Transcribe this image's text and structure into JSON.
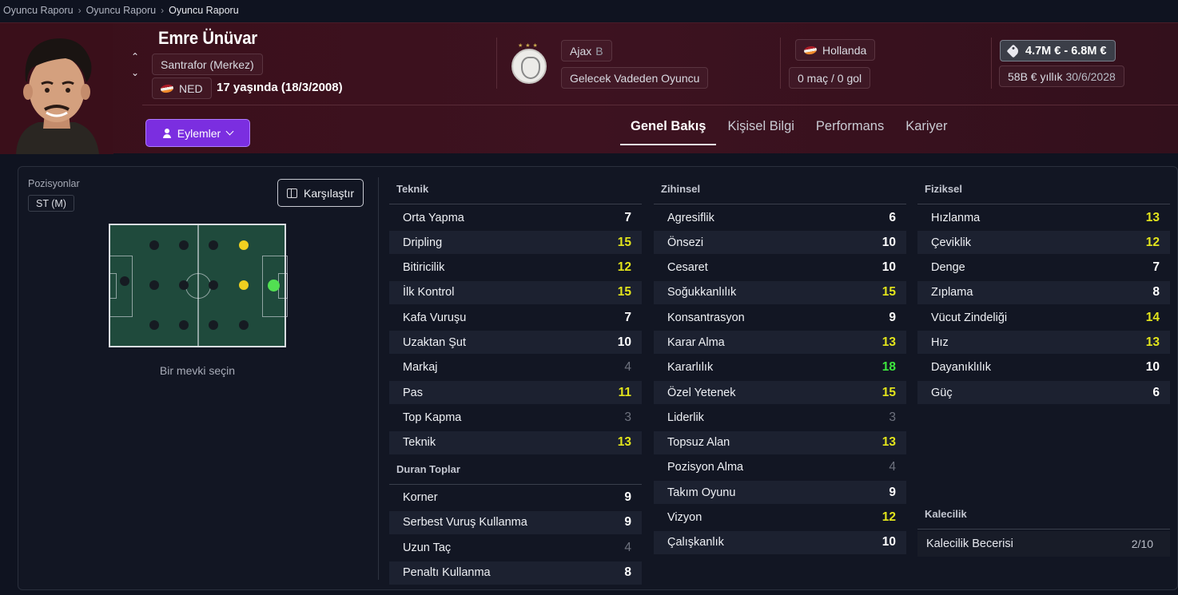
{
  "breadcrumb": [
    "Oyuncu Raporu",
    "Oyuncu Raporu",
    "Oyuncu Raporu"
  ],
  "player": {
    "name": "Emre Ünüvar",
    "position": "Santrafor (Merkez)",
    "nation_code": "NED",
    "age_text": "17 yaşında (18/3/2008)"
  },
  "club": {
    "name": "Ajax",
    "team_suffix": "B",
    "status": "Gelecek Vadeden Oyuncu"
  },
  "nation": {
    "name": "Hollanda",
    "caps": "0 maç / 0 gol"
  },
  "contract": {
    "value": "4.7M € - 6.8M €",
    "wage": "58B € yıllık",
    "expiry": "30/6/2028"
  },
  "actions_label": "Eylemler",
  "tabs": [
    "Genel Bakış",
    "Kişisel Bilgi",
    "Performans",
    "Kariyer"
  ],
  "positions": {
    "label": "Pozisyonlar",
    "current": "ST (M)",
    "compare_label": "Karşılaştır",
    "select_text": "Bir mevki seçin"
  },
  "colors": {
    "header_bg": "#3a0f1a",
    "accent": "#7b2ee0",
    "good": "#e2e41c",
    "great": "#3ee83e",
    "poor": "#6e727e"
  },
  "teknik": {
    "title": "Teknik",
    "items": [
      {
        "name": "Orta Yapma",
        "value": "7",
        "tier": "white"
      },
      {
        "name": "Dripling",
        "value": "15",
        "tier": "yellow"
      },
      {
        "name": "Bitiricilik",
        "value": "12",
        "tier": "yellow"
      },
      {
        "name": "İlk Kontrol",
        "value": "15",
        "tier": "yellow"
      },
      {
        "name": "Kafa Vuruşu",
        "value": "7",
        "tier": "white"
      },
      {
        "name": "Uzaktan Şut",
        "value": "10",
        "tier": "white"
      },
      {
        "name": "Markaj",
        "value": "4",
        "tier": "gray"
      },
      {
        "name": "Pas",
        "value": "11",
        "tier": "yellow"
      },
      {
        "name": "Top Kapma",
        "value": "3",
        "tier": "gray"
      },
      {
        "name": "Teknik",
        "value": "13",
        "tier": "yellow"
      }
    ]
  },
  "duran": {
    "title": "Duran Toplar",
    "items": [
      {
        "name": "Korner",
        "value": "9",
        "tier": "white"
      },
      {
        "name": "Serbest Vuruş Kullanma",
        "value": "9",
        "tier": "white"
      },
      {
        "name": "Uzun Taç",
        "value": "4",
        "tier": "gray"
      },
      {
        "name": "Penaltı Kullanma",
        "value": "8",
        "tier": "white"
      }
    ]
  },
  "zihinsel": {
    "title": "Zihinsel",
    "items": [
      {
        "name": "Agresiflik",
        "value": "6",
        "tier": "white"
      },
      {
        "name": "Önsezi",
        "value": "10",
        "tier": "white"
      },
      {
        "name": "Cesaret",
        "value": "10",
        "tier": "white"
      },
      {
        "name": "Soğukkanlılık",
        "value": "15",
        "tier": "yellow"
      },
      {
        "name": "Konsantrasyon",
        "value": "9",
        "tier": "white"
      },
      {
        "name": "Karar Alma",
        "value": "13",
        "tier": "yellow"
      },
      {
        "name": "Kararlılık",
        "value": "18",
        "tier": "green"
      },
      {
        "name": "Özel Yetenek",
        "value": "15",
        "tier": "yellow"
      },
      {
        "name": "Liderlik",
        "value": "3",
        "tier": "gray"
      },
      {
        "name": "Topsuz Alan",
        "value": "13",
        "tier": "yellow"
      },
      {
        "name": "Pozisyon Alma",
        "value": "4",
        "tier": "gray"
      },
      {
        "name": "Takım Oyunu",
        "value": "9",
        "tier": "white"
      },
      {
        "name": "Vizyon",
        "value": "12",
        "tier": "yellow"
      },
      {
        "name": "Çalışkanlık",
        "value": "10",
        "tier": "white"
      }
    ]
  },
  "fiziksel": {
    "title": "Fiziksel",
    "items": [
      {
        "name": "Hızlanma",
        "value": "13",
        "tier": "yellow"
      },
      {
        "name": "Çeviklik",
        "value": "12",
        "tier": "yellow"
      },
      {
        "name": "Denge",
        "value": "7",
        "tier": "white"
      },
      {
        "name": "Zıplama",
        "value": "8",
        "tier": "white"
      },
      {
        "name": "Vücut Zindeliği",
        "value": "14",
        "tier": "yellow"
      },
      {
        "name": "Hız",
        "value": "13",
        "tier": "yellow"
      },
      {
        "name": "Dayanıklılık",
        "value": "10",
        "tier": "white"
      },
      {
        "name": "Güç",
        "value": "6",
        "tier": "white"
      }
    ]
  },
  "kalecilik": {
    "title": "Kalecilik",
    "label": "Kalecilik Becerisi",
    "value": "2/10"
  }
}
